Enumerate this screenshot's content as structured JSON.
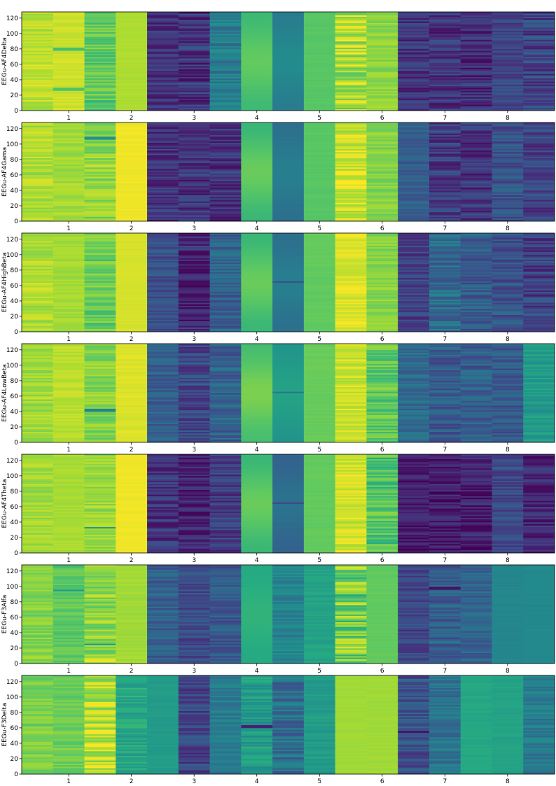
{
  "chart_data": {
    "type": "heatmap",
    "colormap": "viridis",
    "x_tick_labels": [
      "1",
      "2",
      "3",
      "4",
      "5",
      "6",
      "7",
      "8"
    ],
    "y_ticks": [
      0,
      20,
      40,
      60,
      80,
      100,
      120
    ],
    "ylim": [
      0,
      128
    ],
    "columns_per_panel": 17,
    "panels": [
      {
        "ylabel": "EEGu-AF4Delta",
        "columns": [
          {
            "base": 0.9,
            "var": 0.05,
            "freq": 1.3
          },
          {
            "base": 0.93,
            "var": 0.03,
            "freq": 1.0,
            "stripes": [
              {
                "y": 80,
                "v": 0.7
              },
              {
                "y": 28,
                "v": 0.72
              }
            ]
          },
          {
            "base": 0.75,
            "var": 0.06,
            "freq": 1.6
          },
          {
            "base": 0.88,
            "var": 0.01,
            "freq": 1.0
          },
          {
            "base": 0.15,
            "var": 0.06,
            "freq": 1.7
          },
          {
            "base": 0.15,
            "var": 0.07,
            "freq": 1.9
          },
          {
            "base": 0.42,
            "var": 0.07,
            "freq": 1.5
          },
          {
            "base": 0.72,
            "var": 0.04,
            "freq": 0.2
          },
          {
            "base": 0.45,
            "var": 0.03,
            "freq": 0.2
          },
          {
            "base": 0.74,
            "var": 0.01,
            "freq": 1.0
          },
          {
            "base": 0.88,
            "var": 0.08,
            "freq": 1.8
          },
          {
            "base": 0.83,
            "var": 0.04,
            "freq": 1.4
          },
          {
            "base": 0.15,
            "var": 0.06,
            "freq": 1.8
          },
          {
            "base": 0.15,
            "var": 0.06,
            "freq": 1.9
          },
          {
            "base": 0.13,
            "var": 0.06,
            "freq": 2.0
          },
          {
            "base": 0.2,
            "var": 0.05,
            "freq": 1.6
          },
          {
            "base": 0.2,
            "var": 0.08,
            "freq": 1.7
          }
        ]
      },
      {
        "ylabel": "EEGu-AF4Gama",
        "columns": [
          {
            "base": 0.88,
            "var": 0.05,
            "freq": 1.3
          },
          {
            "base": 0.86,
            "var": 0.04,
            "freq": 1.1
          },
          {
            "base": 0.83,
            "var": 0.06,
            "freq": 1.6,
            "stripes": [
              {
                "y": 108,
                "v": 0.5
              }
            ]
          },
          {
            "base": 0.98,
            "var": 0.01,
            "freq": 1.0
          },
          {
            "base": 0.15,
            "var": 0.06,
            "freq": 1.7
          },
          {
            "base": 0.15,
            "var": 0.06,
            "freq": 1.9
          },
          {
            "base": 0.15,
            "var": 0.06,
            "freq": 1.8
          },
          {
            "base": 0.72,
            "var": 0.05,
            "freq": 0.2
          },
          {
            "base": 0.4,
            "var": 0.03,
            "freq": 0.2
          },
          {
            "base": 0.74,
            "var": 0.01,
            "freq": 1.0
          },
          {
            "base": 0.93,
            "var": 0.05,
            "freq": 1.7
          },
          {
            "base": 0.82,
            "var": 0.04,
            "freq": 1.4
          },
          {
            "base": 0.3,
            "var": 0.04,
            "freq": 1.6
          },
          {
            "base": 0.18,
            "var": 0.06,
            "freq": 1.9
          },
          {
            "base": 0.15,
            "var": 0.06,
            "freq": 2.0
          },
          {
            "base": 0.25,
            "var": 0.06,
            "freq": 1.7
          },
          {
            "base": 0.2,
            "var": 0.06,
            "freq": 1.8
          }
        ]
      },
      {
        "ylabel": "EEGu-AF4HighBeta",
        "columns": [
          {
            "base": 0.88,
            "var": 0.05,
            "freq": 1.3
          },
          {
            "base": 0.86,
            "var": 0.03,
            "freq": 1.1
          },
          {
            "base": 0.77,
            "var": 0.06,
            "freq": 1.6
          },
          {
            "base": 0.94,
            "var": 0.01,
            "freq": 1.0
          },
          {
            "base": 0.25,
            "var": 0.05,
            "freq": 1.7
          },
          {
            "base": 0.12,
            "var": 0.06,
            "freq": 1.9
          },
          {
            "base": 0.3,
            "var": 0.06,
            "freq": 1.8
          },
          {
            "base": 0.72,
            "var": 0.05,
            "freq": 0.2
          },
          {
            "base": 0.4,
            "var": 0.03,
            "freq": 0.2,
            "stripes": [
              {
                "y": 65,
                "v": 0.25
              }
            ]
          },
          {
            "base": 0.76,
            "var": 0.01,
            "freq": 1.0
          },
          {
            "base": 0.95,
            "var": 0.03,
            "freq": 1.7
          },
          {
            "base": 0.82,
            "var": 0.04,
            "freq": 1.4
          },
          {
            "base": 0.2,
            "var": 0.06,
            "freq": 1.6
          },
          {
            "base": 0.35,
            "var": 0.06,
            "freq": 1.9
          },
          {
            "base": 0.3,
            "var": 0.05,
            "freq": 2.0
          },
          {
            "base": 0.25,
            "var": 0.06,
            "freq": 1.7
          },
          {
            "base": 0.2,
            "var": 0.07,
            "freq": 1.8
          }
        ]
      },
      {
        "ylabel": "EEGu-AF4LowBeta",
        "columns": [
          {
            "base": 0.86,
            "var": 0.05,
            "freq": 1.3
          },
          {
            "base": 0.9,
            "var": 0.03,
            "freq": 1.1
          },
          {
            "base": 0.82,
            "var": 0.05,
            "freq": 1.6,
            "stripes": [
              {
                "y": 42,
                "v": 0.45
              }
            ]
          },
          {
            "base": 0.95,
            "var": 0.02,
            "freq": 1.0
          },
          {
            "base": 0.3,
            "var": 0.05,
            "freq": 1.7
          },
          {
            "base": 0.22,
            "var": 0.06,
            "freq": 1.9
          },
          {
            "base": 0.32,
            "var": 0.06,
            "freq": 1.8
          },
          {
            "base": 0.75,
            "var": 0.05,
            "freq": 0.2
          },
          {
            "base": 0.55,
            "var": 0.03,
            "freq": 0.2,
            "stripes": [
              {
                "y": 65,
                "v": 0.4
              }
            ]
          },
          {
            "base": 0.77,
            "var": 0.01,
            "freq": 1.0
          },
          {
            "base": 0.93,
            "var": 0.04,
            "freq": 1.7
          },
          {
            "base": 0.75,
            "var": 0.07,
            "freq": 1.4
          },
          {
            "base": 0.35,
            "var": 0.05,
            "freq": 1.6
          },
          {
            "base": 0.28,
            "var": 0.05,
            "freq": 1.9
          },
          {
            "base": 0.3,
            "var": 0.05,
            "freq": 2.0
          },
          {
            "base": 0.28,
            "var": 0.05,
            "freq": 1.7
          },
          {
            "base": 0.55,
            "var": 0.04,
            "freq": 1.8
          }
        ]
      },
      {
        "ylabel": "EEGu-AF4Theta",
        "columns": [
          {
            "base": 0.86,
            "var": 0.04,
            "freq": 1.3
          },
          {
            "base": 0.87,
            "var": 0.02,
            "freq": 1.1
          },
          {
            "base": 0.85,
            "var": 0.04,
            "freq": 1.6,
            "stripes": [
              {
                "y": 33,
                "v": 0.55
              }
            ]
          },
          {
            "base": 0.98,
            "var": 0.01,
            "freq": 1.0
          },
          {
            "base": 0.15,
            "var": 0.06,
            "freq": 1.7
          },
          {
            "base": 0.1,
            "var": 0.05,
            "freq": 1.9
          },
          {
            "base": 0.18,
            "var": 0.06,
            "freq": 1.8
          },
          {
            "base": 0.72,
            "var": 0.05,
            "freq": 0.2
          },
          {
            "base": 0.35,
            "var": 0.03,
            "freq": 0.2,
            "stripes": [
              {
                "y": 65,
                "v": 0.22
              }
            ]
          },
          {
            "base": 0.76,
            "var": 0.01,
            "freq": 1.0
          },
          {
            "base": 0.93,
            "var": 0.04,
            "freq": 1.7
          },
          {
            "base": 0.72,
            "var": 0.08,
            "freq": 1.4
          },
          {
            "base": 0.08,
            "var": 0.05,
            "freq": 1.6
          },
          {
            "base": 0.08,
            "var": 0.05,
            "freq": 1.9
          },
          {
            "base": 0.08,
            "var": 0.05,
            "freq": 2.0
          },
          {
            "base": 0.22,
            "var": 0.05,
            "freq": 1.7
          },
          {
            "base": 0.12,
            "var": 0.06,
            "freq": 1.8
          }
        ]
      },
      {
        "ylabel": "EEGu-F3Alfa",
        "columns": [
          {
            "base": 0.82,
            "var": 0.05,
            "freq": 1.3
          },
          {
            "base": 0.75,
            "var": 0.05,
            "freq": 1.1,
            "stripes": [
              {
                "y": 95,
                "v": 0.55
              }
            ]
          },
          {
            "base": 0.83,
            "var": 0.06,
            "freq": 1.6,
            "stripes": [
              {
                "y": 25,
                "v": 0.55
              },
              {
                "y": 4,
                "v": 0.97
              }
            ]
          },
          {
            "base": 0.86,
            "var": 0.02,
            "freq": 1.0
          },
          {
            "base": 0.3,
            "var": 0.05,
            "freq": 1.7
          },
          {
            "base": 0.22,
            "var": 0.05,
            "freq": 1.9
          },
          {
            "base": 0.28,
            "var": 0.05,
            "freq": 1.8
          },
          {
            "base": 0.63,
            "var": 0.02,
            "freq": 0.2
          },
          {
            "base": 0.45,
            "var": 0.05,
            "freq": 1.5
          },
          {
            "base": 0.58,
            "var": 0.03,
            "freq": 1.2
          },
          {
            "base": 0.78,
            "var": 0.1,
            "freq": 1.8
          },
          {
            "base": 0.76,
            "var": 0.01,
            "freq": 1.0
          },
          {
            "base": 0.2,
            "var": 0.06,
            "freq": 1.6
          },
          {
            "base": 0.3,
            "var": 0.05,
            "freq": 1.9,
            "stripes": [
              {
                "y": 98,
                "v": 0.05
              }
            ]
          },
          {
            "base": 0.32,
            "var": 0.04,
            "freq": 2.0
          },
          {
            "base": 0.46,
            "var": 0.01,
            "freq": 1.0
          },
          {
            "base": 0.47,
            "var": 0.01,
            "freq": 1.0
          }
        ]
      },
      {
        "ylabel": "EEGu-F3Delta",
        "columns": [
          {
            "base": 0.8,
            "var": 0.05,
            "freq": 1.3
          },
          {
            "base": 0.78,
            "var": 0.05,
            "freq": 1.1
          },
          {
            "base": 0.88,
            "var": 0.08,
            "freq": 1.6
          },
          {
            "base": 0.6,
            "var": 0.05,
            "freq": 1.6
          },
          {
            "base": 0.55,
            "var": 0.02,
            "freq": 1.0
          },
          {
            "base": 0.2,
            "var": 0.06,
            "freq": 1.7
          },
          {
            "base": 0.42,
            "var": 0.04,
            "freq": 1.6
          },
          {
            "base": 0.55,
            "var": 0.06,
            "freq": 1.7,
            "stripes": [
              {
                "y": 62,
                "v": 0.1
              }
            ]
          },
          {
            "base": 0.35,
            "var": 0.07,
            "freq": 1.8
          },
          {
            "base": 0.55,
            "var": 0.03,
            "freq": 1.2
          },
          {
            "base": 0.86,
            "var": 0.01,
            "freq": 1.0
          },
          {
            "base": 0.86,
            "var": 0.01,
            "freq": 1.0
          },
          {
            "base": 0.25,
            "var": 0.07,
            "freq": 1.6,
            "stripes": [
              {
                "y": 55,
                "v": 0.02
              }
            ]
          },
          {
            "base": 0.38,
            "var": 0.05,
            "freq": 1.7
          },
          {
            "base": 0.6,
            "var": 0.02,
            "freq": 1.0
          },
          {
            "base": 0.58,
            "var": 0.02,
            "freq": 1.0
          },
          {
            "base": 0.42,
            "var": 0.05,
            "freq": 1.6
          }
        ]
      }
    ]
  }
}
